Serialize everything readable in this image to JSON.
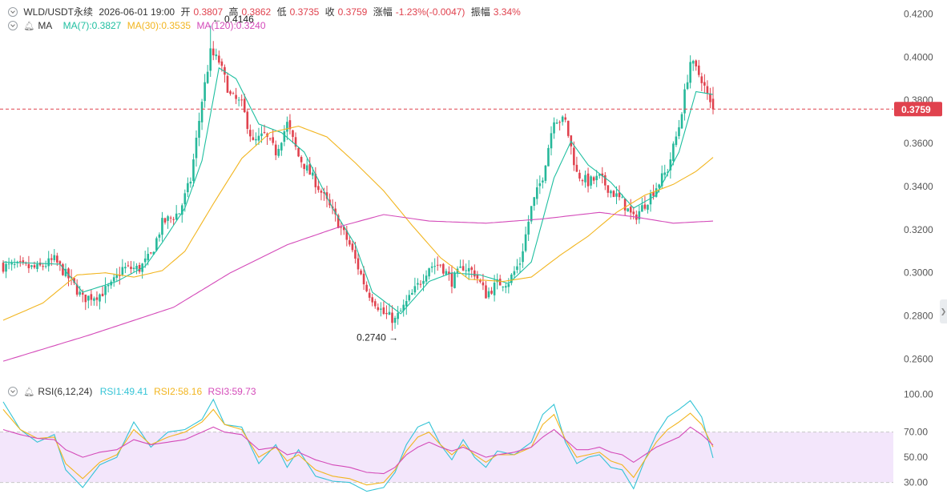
{
  "header": {
    "symbol": "WLD/USDT永续",
    "datetime": "2026-06-01 19:00",
    "open_label": "开",
    "open": "0.3807",
    "high_label": "高",
    "high": "0.3862",
    "low_label": "低",
    "low": "0.3735",
    "close_label": "收",
    "close": "0.3759",
    "change_label": "涨幅",
    "change": "-1.23%(-0.0047)",
    "amplitude_label": "振幅",
    "amplitude": "3.34%"
  },
  "ma_legend": {
    "title": "MA",
    "ma7": "MA(7):0.3827",
    "ma30": "MA(30):0.3535",
    "ma120": "MA(120):0.3240"
  },
  "rsi_legend": {
    "title": "RSI(6,12,24)",
    "rsi1": "RSI1:49.41",
    "rsi2": "RSI2:58.16",
    "rsi3": "RSI3:59.73"
  },
  "colors": {
    "up": "#26b89a",
    "down": "#e0424e",
    "ma7": "#1fbfa0",
    "ma30": "#f2b51f",
    "ma120": "#d44ab9",
    "rsi1": "#34c4d6",
    "rsi2": "#f2b51f",
    "rsi3": "#d44ab9",
    "rsi_band": "#f3e6fb",
    "axis_text": "#555555"
  },
  "chart_data": [
    {
      "type": "candlestick",
      "title": "",
      "ylim": [
        0.252,
        0.4265
      ],
      "y_ticks": [
        "0.4200",
        "0.4000",
        "0.3800",
        "0.3600",
        "0.3400",
        "0.3200",
        "0.3000",
        "0.2800",
        "0.2600"
      ],
      "current_price": "0.3759",
      "annotations": {
        "high": "0.4146",
        "low": "0.2740"
      },
      "anchors": [
        [
          0,
          0.303
        ],
        [
          6,
          0.303
        ],
        [
          12,
          0.302
        ],
        [
          18,
          0.306
        ],
        [
          24,
          0.296
        ],
        [
          28,
          0.288
        ],
        [
          34,
          0.29
        ],
        [
          38,
          0.294
        ],
        [
          42,
          0.302
        ],
        [
          48,
          0.302
        ],
        [
          52,
          0.308
        ],
        [
          56,
          0.323
        ],
        [
          62,
          0.328
        ],
        [
          66,
          0.343
        ],
        [
          70,
          0.38
        ],
        [
          73,
          0.402
        ],
        [
          76,
          0.398
        ],
        [
          80,
          0.382
        ],
        [
          84,
          0.378
        ],
        [
          88,
          0.36
        ],
        [
          92,
          0.364
        ],
        [
          96,
          0.356
        ],
        [
          100,
          0.369
        ],
        [
          104,
          0.354
        ],
        [
          110,
          0.342
        ],
        [
          116,
          0.328
        ],
        [
          122,
          0.313
        ],
        [
          128,
          0.292
        ],
        [
          134,
          0.281
        ],
        [
          138,
          0.278
        ],
        [
          142,
          0.286
        ],
        [
          146,
          0.294
        ],
        [
          150,
          0.303
        ],
        [
          154,
          0.304
        ],
        [
          158,
          0.296
        ],
        [
          162,
          0.303
        ],
        [
          166,
          0.3
        ],
        [
          170,
          0.29
        ],
        [
          174,
          0.295
        ],
        [
          178,
          0.296
        ],
        [
          182,
          0.305
        ],
        [
          186,
          0.33
        ],
        [
          190,
          0.345
        ],
        [
          194,
          0.372
        ],
        [
          198,
          0.37
        ],
        [
          202,
          0.346
        ],
        [
          206,
          0.342
        ],
        [
          210,
          0.344
        ],
        [
          214,
          0.338
        ],
        [
          218,
          0.333
        ],
        [
          222,
          0.325
        ],
        [
          226,
          0.332
        ],
        [
          230,
          0.34
        ],
        [
          234,
          0.348
        ],
        [
          238,
          0.368
        ],
        [
          242,
          0.398
        ],
        [
          246,
          0.39
        ],
        [
          249,
          0.378
        ],
        [
          250,
          0.3759
        ]
      ],
      "ma_anchors": {
        "ma7": [
          [
            0,
            0.305
          ],
          [
            20,
            0.304
          ],
          [
            28,
            0.291
          ],
          [
            40,
            0.296
          ],
          [
            50,
            0.303
          ],
          [
            56,
            0.314
          ],
          [
            64,
            0.33
          ],
          [
            70,
            0.352
          ],
          [
            76,
            0.395
          ],
          [
            82,
            0.39
          ],
          [
            90,
            0.369
          ],
          [
            98,
            0.365
          ],
          [
            106,
            0.356
          ],
          [
            116,
            0.33
          ],
          [
            124,
            0.313
          ],
          [
            130,
            0.291
          ],
          [
            140,
            0.281
          ],
          [
            150,
            0.296
          ],
          [
            158,
            0.3
          ],
          [
            168,
            0.299
          ],
          [
            178,
            0.295
          ],
          [
            186,
            0.305
          ],
          [
            194,
            0.344
          ],
          [
            200,
            0.361
          ],
          [
            206,
            0.35
          ],
          [
            214,
            0.342
          ],
          [
            222,
            0.33
          ],
          [
            230,
            0.336
          ],
          [
            238,
            0.356
          ],
          [
            244,
            0.384
          ],
          [
            250,
            0.3827
          ]
        ],
        "ma30": [
          [
            0,
            0.278
          ],
          [
            14,
            0.286
          ],
          [
            26,
            0.299
          ],
          [
            36,
            0.3
          ],
          [
            46,
            0.298
          ],
          [
            56,
            0.301
          ],
          [
            64,
            0.31
          ],
          [
            74,
            0.332
          ],
          [
            84,
            0.353
          ],
          [
            94,
            0.365
          ],
          [
            104,
            0.368
          ],
          [
            114,
            0.363
          ],
          [
            124,
            0.351
          ],
          [
            134,
            0.338
          ],
          [
            144,
            0.322
          ],
          [
            154,
            0.307
          ],
          [
            164,
            0.297
          ],
          [
            176,
            0.296
          ],
          [
            186,
            0.298
          ],
          [
            196,
            0.308
          ],
          [
            206,
            0.317
          ],
          [
            216,
            0.328
          ],
          [
            226,
            0.336
          ],
          [
            236,
            0.341
          ],
          [
            244,
            0.347
          ],
          [
            250,
            0.3535
          ]
        ],
        "ma120": [
          [
            0,
            0.259
          ],
          [
            30,
            0.271
          ],
          [
            60,
            0.284
          ],
          [
            80,
            0.3
          ],
          [
            100,
            0.313
          ],
          [
            120,
            0.322
          ],
          [
            134,
            0.327
          ],
          [
            150,
            0.324
          ],
          [
            170,
            0.323
          ],
          [
            190,
            0.325
          ],
          [
            210,
            0.328
          ],
          [
            222,
            0.326
          ],
          [
            236,
            0.323
          ],
          [
            250,
            0.324
          ]
        ]
      }
    },
    {
      "type": "line",
      "title": "",
      "ylim": [
        24.0,
        103.5
      ],
      "y_ticks": [
        "100.00",
        "70.00",
        "50.00",
        "30.00"
      ],
      "band": [
        30,
        70
      ],
      "series": [
        {
          "name": "RSI1",
          "anchors": [
            [
              0,
              94
            ],
            [
              6,
              72
            ],
            [
              12,
              62
            ],
            [
              18,
              68
            ],
            [
              22,
              40
            ],
            [
              28,
              26
            ],
            [
              34,
              44
            ],
            [
              40,
              50
            ],
            [
              46,
              78
            ],
            [
              52,
              58
            ],
            [
              58,
              70
            ],
            [
              64,
              72
            ],
            [
              70,
              80
            ],
            [
              74,
              96
            ],
            [
              78,
              76
            ],
            [
              84,
              74
            ],
            [
              90,
              45
            ],
            [
              96,
              60
            ],
            [
              100,
              42
            ],
            [
              104,
              56
            ],
            [
              110,
              35
            ],
            [
              116,
              31
            ],
            [
              122,
              30
            ],
            [
              128,
              23
            ],
            [
              134,
              26
            ],
            [
              138,
              38
            ],
            [
              142,
              60
            ],
            [
              146,
              74
            ],
            [
              150,
              78
            ],
            [
              154,
              60
            ],
            [
              158,
              48
            ],
            [
              162,
              64
            ],
            [
              166,
              50
            ],
            [
              170,
              42
            ],
            [
              174,
              55
            ],
            [
              180,
              52
            ],
            [
              186,
              62
            ],
            [
              190,
              84
            ],
            [
              194,
              92
            ],
            [
              198,
              62
            ],
            [
              202,
              45
            ],
            [
              206,
              50
            ],
            [
              210,
              52
            ],
            [
              214,
              42
            ],
            [
              218,
              40
            ],
            [
              222,
              25
            ],
            [
              226,
              48
            ],
            [
              230,
              68
            ],
            [
              234,
              82
            ],
            [
              238,
              88
            ],
            [
              242,
              95
            ],
            [
              246,
              82
            ],
            [
              250,
              49.41
            ]
          ]
        },
        {
          "name": "RSI2",
          "anchors": [
            [
              0,
              88
            ],
            [
              6,
              72
            ],
            [
              12,
              65
            ],
            [
              18,
              66
            ],
            [
              22,
              45
            ],
            [
              28,
              33
            ],
            [
              34,
              46
            ],
            [
              40,
              52
            ],
            [
              46,
              72
            ],
            [
              52,
              60
            ],
            [
              58,
              66
            ],
            [
              64,
              70
            ],
            [
              70,
              78
            ],
            [
              74,
              88
            ],
            [
              78,
              76
            ],
            [
              84,
              72
            ],
            [
              90,
              50
            ],
            [
              96,
              58
            ],
            [
              100,
              47
            ],
            [
              104,
              52
            ],
            [
              110,
              40
            ],
            [
              116,
              35
            ],
            [
              122,
              33
            ],
            [
              128,
              28
            ],
            [
              134,
              30
            ],
            [
              138,
              40
            ],
            [
              142,
              55
            ],
            [
              146,
              66
            ],
            [
              150,
              70
            ],
            [
              154,
              60
            ],
            [
              158,
              52
            ],
            [
              162,
              60
            ],
            [
              166,
              52
            ],
            [
              170,
              46
            ],
            [
              174,
              52
            ],
            [
              180,
              52
            ],
            [
              186,
              58
            ],
            [
              190,
              76
            ],
            [
              194,
              84
            ],
            [
              198,
              64
            ],
            [
              202,
              50
            ],
            [
              206,
              52
            ],
            [
              210,
              54
            ],
            [
              214,
              47
            ],
            [
              218,
              44
            ],
            [
              222,
              34
            ],
            [
              226,
              48
            ],
            [
              230,
              62
            ],
            [
              234,
              72
            ],
            [
              238,
              78
            ],
            [
              242,
              85
            ],
            [
              246,
              76
            ],
            [
              250,
              58.16
            ]
          ]
        },
        {
          "name": "RSI3",
          "anchors": [
            [
              0,
              72
            ],
            [
              6,
              68
            ],
            [
              12,
              65
            ],
            [
              18,
              64
            ],
            [
              22,
              56
            ],
            [
              28,
              50
            ],
            [
              34,
              54
            ],
            [
              40,
              56
            ],
            [
              46,
              64
            ],
            [
              52,
              60
            ],
            [
              58,
              62
            ],
            [
              64,
              64
            ],
            [
              70,
              70
            ],
            [
              74,
              74
            ],
            [
              78,
              70
            ],
            [
              84,
              68
            ],
            [
              90,
              56
            ],
            [
              96,
              58
            ],
            [
              100,
              52
            ],
            [
              104,
              54
            ],
            [
              110,
              48
            ],
            [
              116,
              44
            ],
            [
              122,
              42
            ],
            [
              128,
              38
            ],
            [
              134,
              37
            ],
            [
              138,
              42
            ],
            [
              142,
              52
            ],
            [
              146,
              58
            ],
            [
              150,
              62
            ],
            [
              154,
              58
            ],
            [
              158,
              55
            ],
            [
              162,
              58
            ],
            [
              166,
              54
            ],
            [
              170,
              50
            ],
            [
              174,
              52
            ],
            [
              180,
              54
            ],
            [
              186,
              58
            ],
            [
              190,
              66
            ],
            [
              194,
              72
            ],
            [
              198,
              64
            ],
            [
              202,
              56
            ],
            [
              206,
              56
            ],
            [
              210,
              58
            ],
            [
              214,
              54
            ],
            [
              218,
              52
            ],
            [
              222,
              46
            ],
            [
              226,
              52
            ],
            [
              230,
              58
            ],
            [
              234,
              62
            ],
            [
              238,
              66
            ],
            [
              242,
              74
            ],
            [
              246,
              68
            ],
            [
              250,
              59.73
            ]
          ]
        }
      ]
    }
  ]
}
